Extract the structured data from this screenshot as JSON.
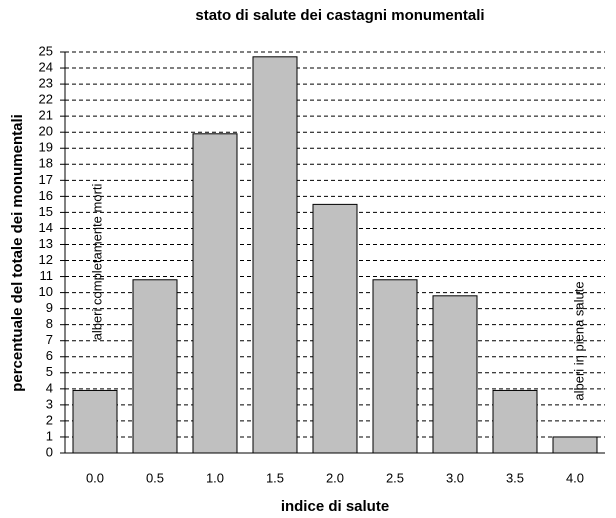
{
  "chart_data": {
    "type": "bar",
    "title": "stato di salute dei castagni monumentali",
    "x_label": "indice di salute",
    "y_label": "percentuale del totale dei monumentali",
    "categories": [
      "0.0",
      "0.5",
      "1.0",
      "1.5",
      "2.0",
      "2.5",
      "3.0",
      "3.5",
      "4.0"
    ],
    "values": [
      3.9,
      10.8,
      19.9,
      24.7,
      15.5,
      10.8,
      9.8,
      3.9,
      1.0
    ],
    "color": "#c0c0c0",
    "ylim": [
      0,
      25
    ],
    "yticks": [
      0,
      1,
      2,
      3,
      4,
      5,
      6,
      7,
      8,
      9,
      10,
      11,
      12,
      13,
      14,
      15,
      16,
      17,
      18,
      19,
      20,
      21,
      22,
      23,
      24,
      25
    ],
    "grid": true,
    "annotations": [
      {
        "text": "alberi completamente morti",
        "color": "#e02828"
      },
      {
        "text": "alberi in piena salute",
        "color": "#e02828"
      }
    ]
  }
}
